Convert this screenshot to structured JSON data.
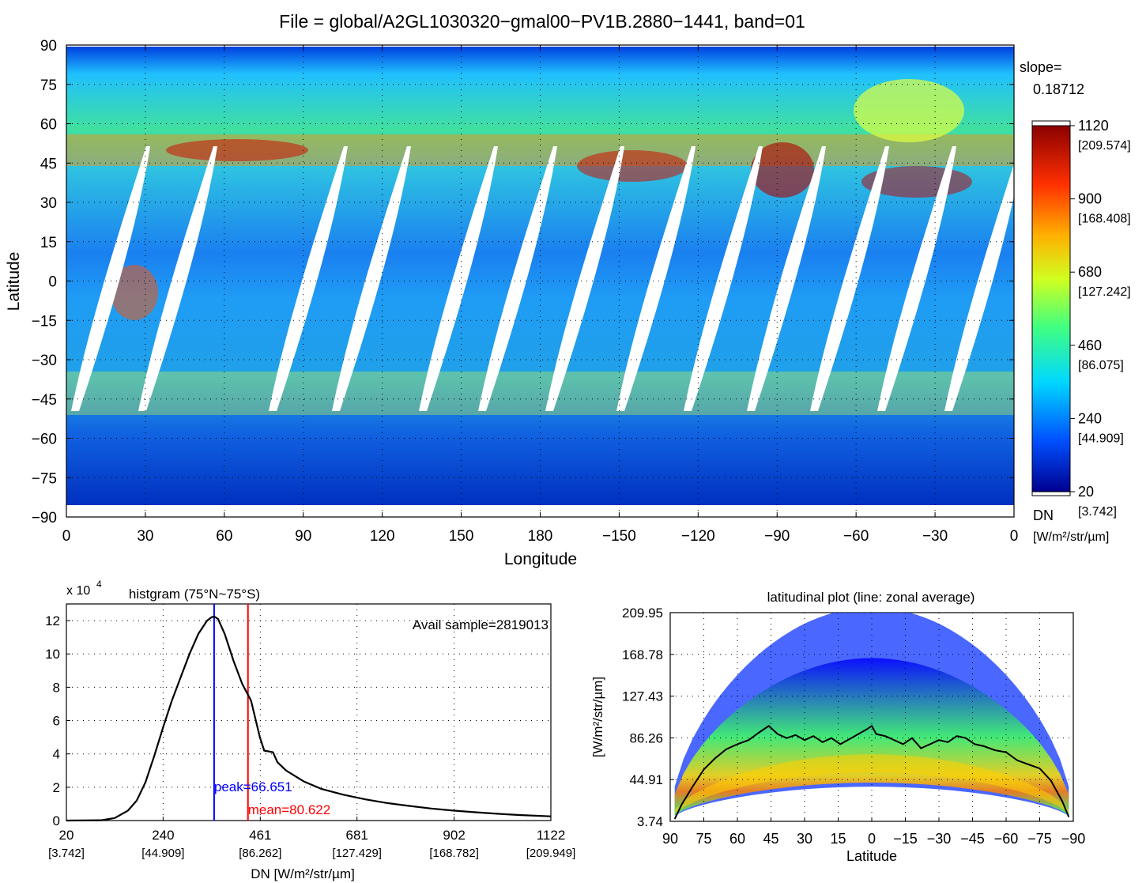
{
  "title": "File = global/A2GL1030320−gmal00−PV1B.2880−1441, band=01",
  "map": {
    "type": "heatmap",
    "xlabel": "Longitude",
    "ylabel": "Latitude",
    "x_ticks": [
      "0",
      "30",
      "60",
      "90",
      "120",
      "150",
      "180",
      "−150",
      "−120",
      "−90",
      "−60",
      "−30",
      "0"
    ],
    "y_ticks": [
      "90",
      "75",
      "60",
      "45",
      "30",
      "15",
      "0",
      "−15",
      "−30",
      "−45",
      "−60",
      "−75",
      "−90"
    ],
    "grid": true
  },
  "colorbar": {
    "slope_label": "slope=",
    "slope_value": "0.18712",
    "ticks": [
      {
        "dn": "1120",
        "rad": "[209.574]"
      },
      {
        "dn": "900",
        "rad": "[168.408]"
      },
      {
        "dn": "680",
        "rad": "[127.242]"
      },
      {
        "dn": "460",
        "rad": "[86.075]"
      },
      {
        "dn": "240",
        "rad": "[44.909]"
      },
      {
        "dn": "20",
        "rad": "[3.742]"
      }
    ],
    "dn_label": "DN",
    "unit_label": "[W/m²/str/µm]",
    "colors": [
      "#00008f",
      "#0050ff",
      "#00d8ff",
      "#40ff80",
      "#d0ff20",
      "#ffb000",
      "#ff3000",
      "#8b0000"
    ]
  },
  "chart_data": [
    {
      "type": "line",
      "title_prefix": "x 10",
      "title_exp": "4",
      "title": "histgram (75°N~75°S)",
      "annotation": "Avail sample=2819013",
      "xlabel": "DN [W/m²/str/µm]",
      "xlim": [
        20,
        1122
      ],
      "ylim": [
        0,
        13
      ],
      "x_ticks": [
        {
          "v": 20,
          "dn": "20",
          "rad": "[3.742]"
        },
        {
          "v": 240,
          "dn": "240",
          "rad": "[44.909]"
        },
        {
          "v": 461,
          "dn": "461",
          "rad": "[86.262]"
        },
        {
          "v": 681,
          "dn": "681",
          "rad": "[127.429]"
        },
        {
          "v": 902,
          "dn": "902",
          "rad": "[168.782]"
        },
        {
          "v": 1122,
          "dn": "1122",
          "rad": "[209.949]"
        }
      ],
      "y_ticks": [
        0,
        2,
        4,
        6,
        8,
        10,
        12
      ],
      "series": [
        {
          "x": [
            20,
            100,
            130,
            160,
            180,
            200,
            220,
            240,
            260,
            280,
            300,
            320,
            340,
            350,
            356,
            365,
            380,
            400,
            420,
            440,
            450,
            460,
            470,
            490,
            500,
            520,
            560,
            600,
            650,
            700,
            750,
            800,
            850,
            900,
            950,
            1000,
            1050,
            1122
          ],
          "y": [
            0,
            0.02,
            0.15,
            0.6,
            1.2,
            2.3,
            3.9,
            5.6,
            7.2,
            8.6,
            10.0,
            11.2,
            12.0,
            12.2,
            12.25,
            12.1,
            11.2,
            9.6,
            8.2,
            7.2,
            6.1,
            5.0,
            4.2,
            4.1,
            3.5,
            3.0,
            2.35,
            1.9,
            1.55,
            1.27,
            1.05,
            0.88,
            0.72,
            0.6,
            0.5,
            0.41,
            0.33,
            0.25
          ]
        }
      ],
      "peak": {
        "x": 356,
        "label": "peak=66.651",
        "color": "#0000ff"
      },
      "mean": {
        "x": 433,
        "label": "mean=80.622",
        "color": "#ff0000"
      }
    },
    {
      "type": "scatter",
      "title": "latitudinal plot (line: zonal average)",
      "xlabel": "Latitude",
      "ylabel": "[W/m²/str/µm]",
      "xlim": [
        90,
        -90
      ],
      "ylim": [
        3.74,
        209.95
      ],
      "x_ticks": [
        "90",
        "75",
        "60",
        "45",
        "30",
        "15",
        "0",
        "−15",
        "−30",
        "−45",
        "−60",
        "−75",
        "−90"
      ],
      "y_ticks": [
        "209.95",
        "168.78",
        "127.43",
        "86.26",
        "44.91",
        "3.74"
      ],
      "series": [
        {
          "name": "zonal average",
          "x": [
            88,
            85,
            80,
            75,
            70,
            65,
            60,
            55,
            50,
            46,
            42,
            38,
            34,
            30,
            26,
            22,
            18,
            14,
            10,
            6,
            2,
            0,
            -2,
            -6,
            -10,
            -14,
            -18,
            -22,
            -26,
            -30,
            -34,
            -38,
            -42,
            -46,
            -50,
            -55,
            -60,
            -65,
            -70,
            -75,
            -80,
            -85,
            -88
          ],
          "y": [
            6,
            20,
            38,
            55,
            66,
            75,
            80,
            84,
            92,
            98,
            90,
            86,
            89,
            84,
            88,
            82,
            86,
            80,
            85,
            90,
            95,
            98,
            90,
            88,
            84,
            80,
            86,
            76,
            80,
            84,
            82,
            88,
            86,
            80,
            78,
            74,
            72,
            64,
            60,
            56,
            44,
            24,
            8
          ]
        }
      ]
    }
  ]
}
